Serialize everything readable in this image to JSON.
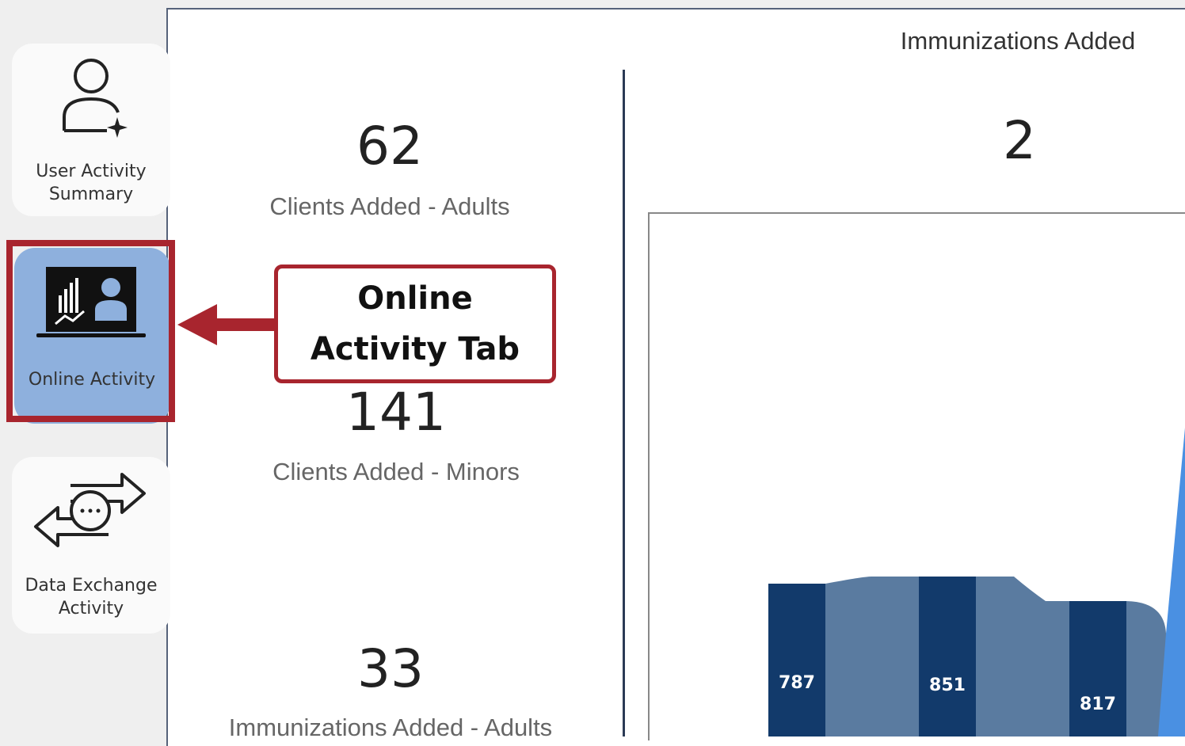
{
  "sidebar": {
    "items": [
      {
        "label": "User Activity Summary"
      },
      {
        "label": "Online Activity"
      },
      {
        "label": "Data Exchange Activity"
      }
    ]
  },
  "kpis": [
    {
      "value": "62",
      "label": "Clients Added - Adults"
    },
    {
      "value": "141",
      "label": "Clients Added - Minors"
    },
    {
      "value": "33",
      "label": "Immunizations Added - Adults"
    },
    {
      "value": "2",
      "label": "Immunizations Added"
    }
  ],
  "callout": "Online Activity Tab",
  "chart": {
    "labels": [
      787,
      851,
      817
    ]
  }
}
